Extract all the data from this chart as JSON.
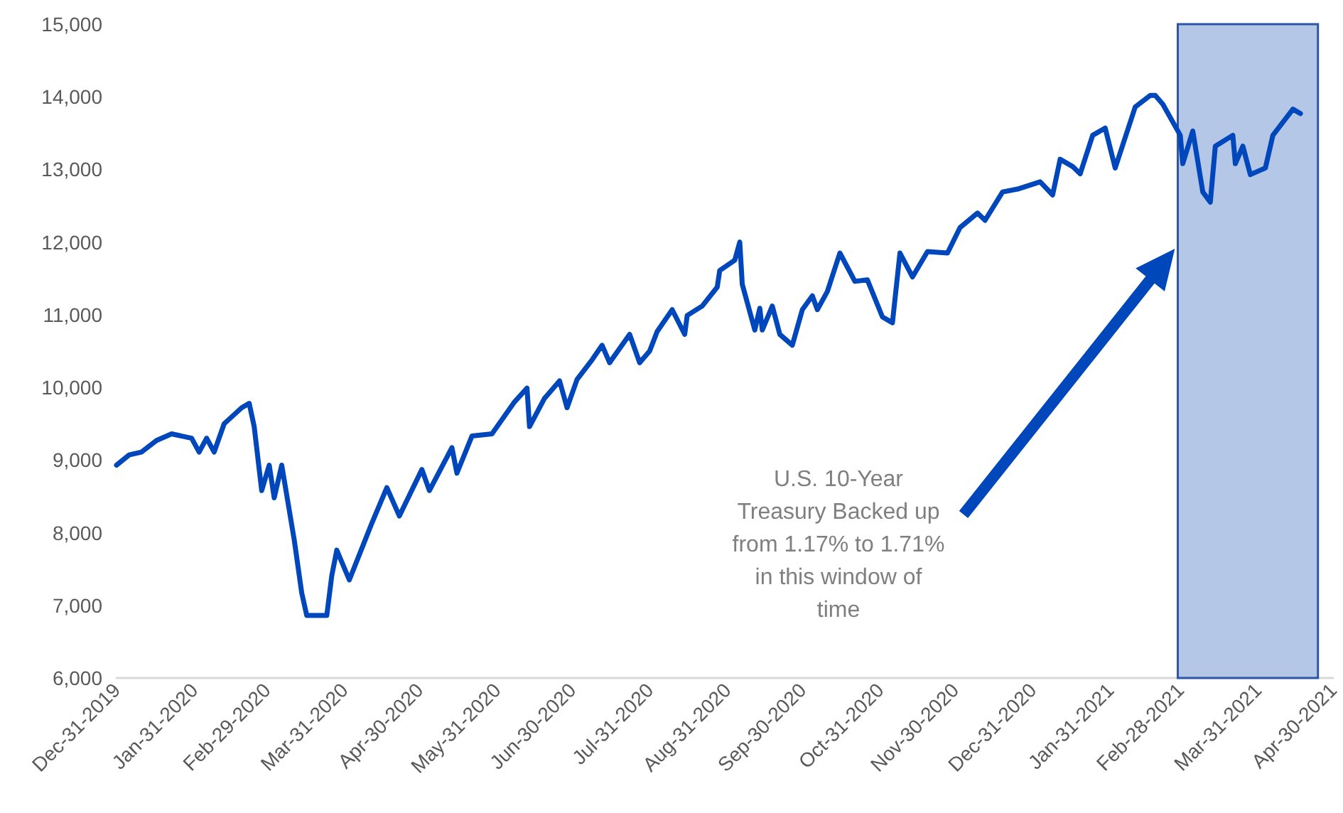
{
  "chart_data": {
    "type": "line",
    "x": [
      "2019-12-31",
      "2020-01-05",
      "2020-01-10",
      "2020-01-16",
      "2020-01-22",
      "2020-01-30",
      "2020-02-02",
      "2020-02-05",
      "2020-02-08",
      "2020-02-12",
      "2020-02-19",
      "2020-02-22",
      "2020-02-24",
      "2020-02-27",
      "2020-03-01",
      "2020-03-03",
      "2020-03-06",
      "2020-03-11",
      "2020-03-14",
      "2020-03-16",
      "2020-03-24",
      "2020-03-26",
      "2020-03-28",
      "2020-04-02",
      "2020-04-11",
      "2020-04-17",
      "2020-04-22",
      "2020-05-01",
      "2020-05-04",
      "2020-05-13",
      "2020-05-15",
      "2020-05-21",
      "2020-05-29",
      "2020-06-07",
      "2020-06-12",
      "2020-06-13",
      "2020-06-19",
      "2020-06-25",
      "2020-06-28",
      "2020-07-02",
      "2020-07-08",
      "2020-07-12",
      "2020-07-15",
      "2020-07-23",
      "2020-07-27",
      "2020-07-31",
      "2020-08-03",
      "2020-08-09",
      "2020-08-14",
      "2020-08-15",
      "2020-08-21",
      "2020-08-27",
      "2020-08-28",
      "2020-09-03",
      "2020-09-05",
      "2020-09-06",
      "2020-09-11",
      "2020-09-13",
      "2020-09-14",
      "2020-09-18",
      "2020-09-21",
      "2020-09-26",
      "2020-09-30",
      "2020-10-04",
      "2020-10-06",
      "2020-10-10",
      "2020-10-15",
      "2020-10-21",
      "2020-10-26",
      "2020-11-01",
      "2020-11-05",
      "2020-11-08",
      "2020-11-13",
      "2020-11-19",
      "2020-11-27",
      "2020-12-02",
      "2020-12-09",
      "2020-12-12",
      "2020-12-19",
      "2020-12-25",
      "2021-01-03",
      "2021-01-08",
      "2021-01-11",
      "2021-01-16",
      "2021-01-19",
      "2021-01-24",
      "2021-01-29",
      "2021-02-02",
      "2021-02-10",
      "2021-02-16",
      "2021-02-18",
      "2021-02-21",
      "2021-02-28",
      "2021-03-01",
      "2021-03-05",
      "2021-03-09",
      "2021-03-12",
      "2021-03-14",
      "2021-03-21",
      "2021-03-22",
      "2021-03-25",
      "2021-03-28",
      "2021-04-03",
      "2021-04-06",
      "2021-04-14",
      "2021-04-17"
    ],
    "series": [
      {
        "color": "#0047bb",
        "values": [
          8930,
          9070,
          9110,
          9270,
          9360,
          9300,
          9110,
          9300,
          9110,
          9500,
          9720,
          9780,
          9460,
          8580,
          8930,
          8480,
          8930,
          7900,
          7170,
          6860,
          6860,
          7410,
          7760,
          7350,
          8130,
          8620,
          8230,
          8870,
          8580,
          9170,
          8820,
          9330,
          9360,
          9800,
          9990,
          9460,
          9850,
          10090,
          9720,
          10110,
          10380,
          10580,
          10340,
          10730,
          10340,
          10500,
          10770,
          11070,
          10730,
          10990,
          11120,
          11380,
          11610,
          11750,
          12000,
          11420,
          10790,
          11090,
          10790,
          11120,
          10730,
          10580,
          11070,
          11260,
          11070,
          11320,
          11850,
          11460,
          11480,
          10970,
          10890,
          11850,
          11520,
          11870,
          11850,
          12200,
          12400,
          12300,
          12690,
          12730,
          12830,
          12650,
          13140,
          13040,
          12940,
          13470,
          13570,
          13020,
          13860,
          14020,
          14020,
          13900,
          13470,
          13080,
          13530,
          12690,
          12550,
          13320,
          13470,
          13080,
          13320,
          12930,
          13020,
          13470,
          13830,
          13770
        ]
      }
    ],
    "xlim": [
      "2019-12-31",
      "2021-04-30"
    ],
    "xticks": [
      {
        "value": "2019-12-31",
        "label": "Dec-31-2019"
      },
      {
        "value": "2020-01-31",
        "label": "Jan-31-2020"
      },
      {
        "value": "2020-02-29",
        "label": "Feb-29-2020"
      },
      {
        "value": "2020-03-31",
        "label": "Mar-31-2020"
      },
      {
        "value": "2020-04-30",
        "label": "Apr-30-2020"
      },
      {
        "value": "2020-05-31",
        "label": "May-31-2020"
      },
      {
        "value": "2020-06-30",
        "label": "Jun-30-2020"
      },
      {
        "value": "2020-07-31",
        "label": "Jul-31-2020"
      },
      {
        "value": "2020-08-31",
        "label": "Aug-31-2020"
      },
      {
        "value": "2020-09-30",
        "label": "Sep-30-2020"
      },
      {
        "value": "2020-10-31",
        "label": "Oct-31-2020"
      },
      {
        "value": "2020-11-30",
        "label": "Nov-30-2020"
      },
      {
        "value": "2020-12-31",
        "label": "Dec-31-2020"
      },
      {
        "value": "2021-01-31",
        "label": "Jan-31-2021"
      },
      {
        "value": "2021-02-28",
        "label": "Feb-28-2021"
      },
      {
        "value": "2021-03-31",
        "label": "Mar-31-2021"
      },
      {
        "value": "2021-04-30",
        "label": "Apr-30-2021"
      }
    ],
    "ylim": [
      6000,
      15000
    ],
    "yticks": [
      {
        "value": 6000,
        "label": "6,000"
      },
      {
        "value": 7000,
        "label": "7,000"
      },
      {
        "value": 8000,
        "label": "8,000"
      },
      {
        "value": 9000,
        "label": "9,000"
      },
      {
        "value": 10000,
        "label": "10,000"
      },
      {
        "value": 11000,
        "label": "11,000"
      },
      {
        "value": 12000,
        "label": "12,000"
      },
      {
        "value": 13000,
        "label": "13,000"
      },
      {
        "value": 14000,
        "label": "14,000"
      },
      {
        "value": 15000,
        "label": "15,000"
      }
    ],
    "bands": [
      {
        "axis": "x",
        "from": "2021-02-27",
        "to": "2021-04-24",
        "color": "#b4c7e7"
      }
    ],
    "annotations": [
      "U.S. 10-Year Treasury Backed up from 1.17% to 1.71% in this window of time"
    ],
    "grid": false,
    "marker": "none",
    "line_style": "solid"
  }
}
